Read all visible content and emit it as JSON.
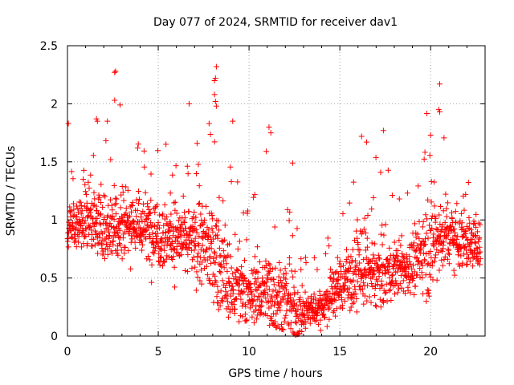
{
  "chart_data": {
    "type": "scatter",
    "title": "Day 077 of 2024, SRMTID for receiver dav1",
    "xlabel": "GPS time / hours",
    "ylabel": "SRMTID / TECUs",
    "xlim": [
      0,
      23
    ],
    "ylim": [
      0,
      2.5
    ],
    "grid": true,
    "x_ticks": [
      0,
      5,
      10,
      15,
      20
    ],
    "y_ticks": [
      0,
      0.5,
      1,
      1.5,
      2,
      2.5
    ],
    "x_tick_labels": [
      "0",
      "5",
      "10",
      "15",
      "20"
    ],
    "y_tick_labels": [
      "0",
      "0.5",
      "1",
      "1.5",
      "2",
      "2.5"
    ],
    "marker": "+",
    "color": "#ff0000",
    "x_range_observed": [
      0,
      22.75
    ],
    "point_count": 1900,
    "envelope": {
      "x": [
        0,
        1,
        2,
        3,
        4,
        5,
        6,
        7,
        8,
        9,
        10,
        11,
        12,
        12.5,
        13,
        14,
        15,
        16,
        17,
        18,
        19,
        20,
        21,
        22,
        22.75
      ],
      "median": [
        0.95,
        1.0,
        0.95,
        1.0,
        0.95,
        0.9,
        0.85,
        0.8,
        0.75,
        0.4,
        0.35,
        0.4,
        0.3,
        0.22,
        0.2,
        0.25,
        0.45,
        0.55,
        0.55,
        0.55,
        0.6,
        0.8,
        0.9,
        0.8,
        0.8
      ],
      "min": [
        0.45,
        0.35,
        0.4,
        0.35,
        0.45,
        0.3,
        0.25,
        0.2,
        0.3,
        0.08,
        0.12,
        0.1,
        0.05,
        0.01,
        0.03,
        0.05,
        0.15,
        0.2,
        0.25,
        0.25,
        0.25,
        0.3,
        0.35,
        0.3,
        0.4
      ],
      "max": [
        1.6,
        1.5,
        1.8,
        1.9,
        1.65,
        1.75,
        1.6,
        1.6,
        2.1,
        1.8,
        1.1,
        1.8,
        1.2,
        1.5,
        0.7,
        0.75,
        1.3,
        1.7,
        1.7,
        1.3,
        1.3,
        2.1,
        1.7,
        1.4,
        1.3
      ]
    },
    "notable_points": [
      {
        "x": 2.6,
        "y": 2.27
      },
      {
        "x": 2.65,
        "y": 2.28
      },
      {
        "x": 8.2,
        "y": 2.32
      },
      {
        "x": 8.15,
        "y": 2.22
      },
      {
        "x": 8.1,
        "y": 2.2
      },
      {
        "x": 8.1,
        "y": 2.08
      },
      {
        "x": 8.15,
        "y": 2.02
      },
      {
        "x": 8.2,
        "y": 1.98
      },
      {
        "x": 6.7,
        "y": 2.0
      },
      {
        "x": 20.5,
        "y": 2.17
      },
      {
        "x": 20.45,
        "y": 1.95
      },
      {
        "x": 20.5,
        "y": 1.93
      },
      {
        "x": 2.6,
        "y": 2.03
      },
      {
        "x": 2.9,
        "y": 1.99
      },
      {
        "x": 0.05,
        "y": 1.83
      },
      {
        "x": 1.6,
        "y": 1.87
      },
      {
        "x": 1.65,
        "y": 1.85
      },
      {
        "x": 2.2,
        "y": 1.85
      },
      {
        "x": 7.8,
        "y": 1.83
      },
      {
        "x": 9.1,
        "y": 1.85
      },
      {
        "x": 11.1,
        "y": 1.8
      },
      {
        "x": 11.2,
        "y": 1.75
      },
      {
        "x": 17.4,
        "y": 1.77
      },
      {
        "x": 16.2,
        "y": 1.72
      },
      {
        "x": 20.0,
        "y": 1.73
      },
      {
        "x": 12.4,
        "y": 1.49
      },
      {
        "x": 12.5,
        "y": 0.02
      },
      {
        "x": 12.55,
        "y": 0.01
      }
    ]
  }
}
